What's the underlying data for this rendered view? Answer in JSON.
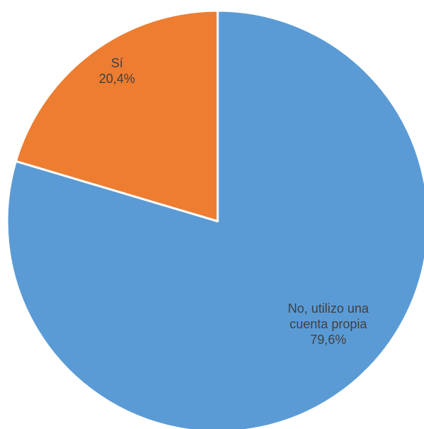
{
  "chart_data": {
    "type": "pie",
    "start_angle_deg": 0,
    "direction": "clockwise",
    "slices": [
      {
        "label_lines": [
          "No, utilizo una",
          "cuenta propia"
        ],
        "value": 79.6,
        "value_label": "79,6%",
        "color": "#5B9BD5"
      },
      {
        "label_lines": [
          "Sí"
        ],
        "value": 20.4,
        "value_label": "20,4%",
        "color": "#ED7D31"
      }
    ],
    "legend": "none"
  }
}
